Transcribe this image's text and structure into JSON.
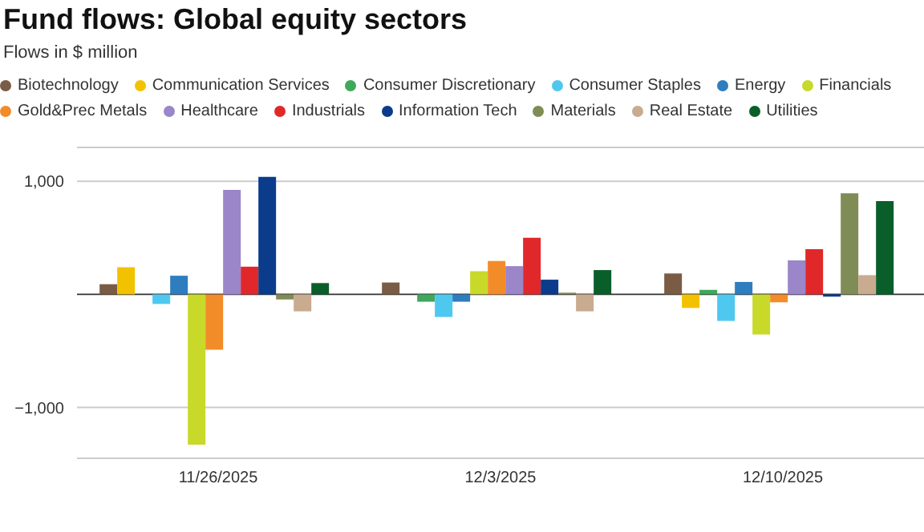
{
  "chart_data": {
    "type": "bar",
    "title": "Fund flows: Global equity sectors",
    "subtitle": "Flows in $ million",
    "categories": [
      "11/26/2025",
      "12/3/2025",
      "12/10/2025"
    ],
    "series": [
      {
        "name": "Biotechnology",
        "color": "#7a5c45",
        "values": [
          90,
          105,
          185
        ]
      },
      {
        "name": "Communication Services",
        "color": "#f2c200",
        "values": [
          240,
          0,
          -120
        ]
      },
      {
        "name": "Consumer Discretionary",
        "color": "#3fa85b",
        "values": [
          0,
          -65,
          40
        ]
      },
      {
        "name": "Consumer Staples",
        "color": "#4fc8f0",
        "values": [
          -85,
          -200,
          -235
        ]
      },
      {
        "name": "Energy",
        "color": "#2e7dbf",
        "values": [
          165,
          -65,
          110
        ]
      },
      {
        "name": "Financials",
        "color": "#c8d92a",
        "values": [
          -1330,
          205,
          -355
        ]
      },
      {
        "name": "Gold&Prec Metals",
        "color": "#f28c28",
        "values": [
          -490,
          295,
          -70
        ]
      },
      {
        "name": "Healthcare",
        "color": "#9a86c8",
        "values": [
          925,
          250,
          300
        ]
      },
      {
        "name": "Industrials",
        "color": "#e0282a",
        "values": [
          245,
          500,
          400
        ]
      },
      {
        "name": "Information Tech",
        "color": "#0b3c8c",
        "values": [
          1040,
          130,
          -20
        ]
      },
      {
        "name": "Materials",
        "color": "#7f8c55",
        "values": [
          -45,
          15,
          895
        ]
      },
      {
        "name": "Real Estate",
        "color": "#c9ab90",
        "values": [
          -150,
          -150,
          170
        ]
      },
      {
        "name": "Utilities",
        "color": "#0a5e2a",
        "values": [
          100,
          215,
          825
        ]
      }
    ],
    "ylim": [
      -1450,
      1300
    ],
    "yticks": [
      {
        "value": -1000,
        "label": "−1,000"
      },
      {
        "value": 1000,
        "label": "1,000"
      }
    ],
    "ref_lines": [
      {
        "axis": "y",
        "value": 0,
        "color": "#333333"
      }
    ],
    "grid": "y",
    "legend": "top left"
  }
}
